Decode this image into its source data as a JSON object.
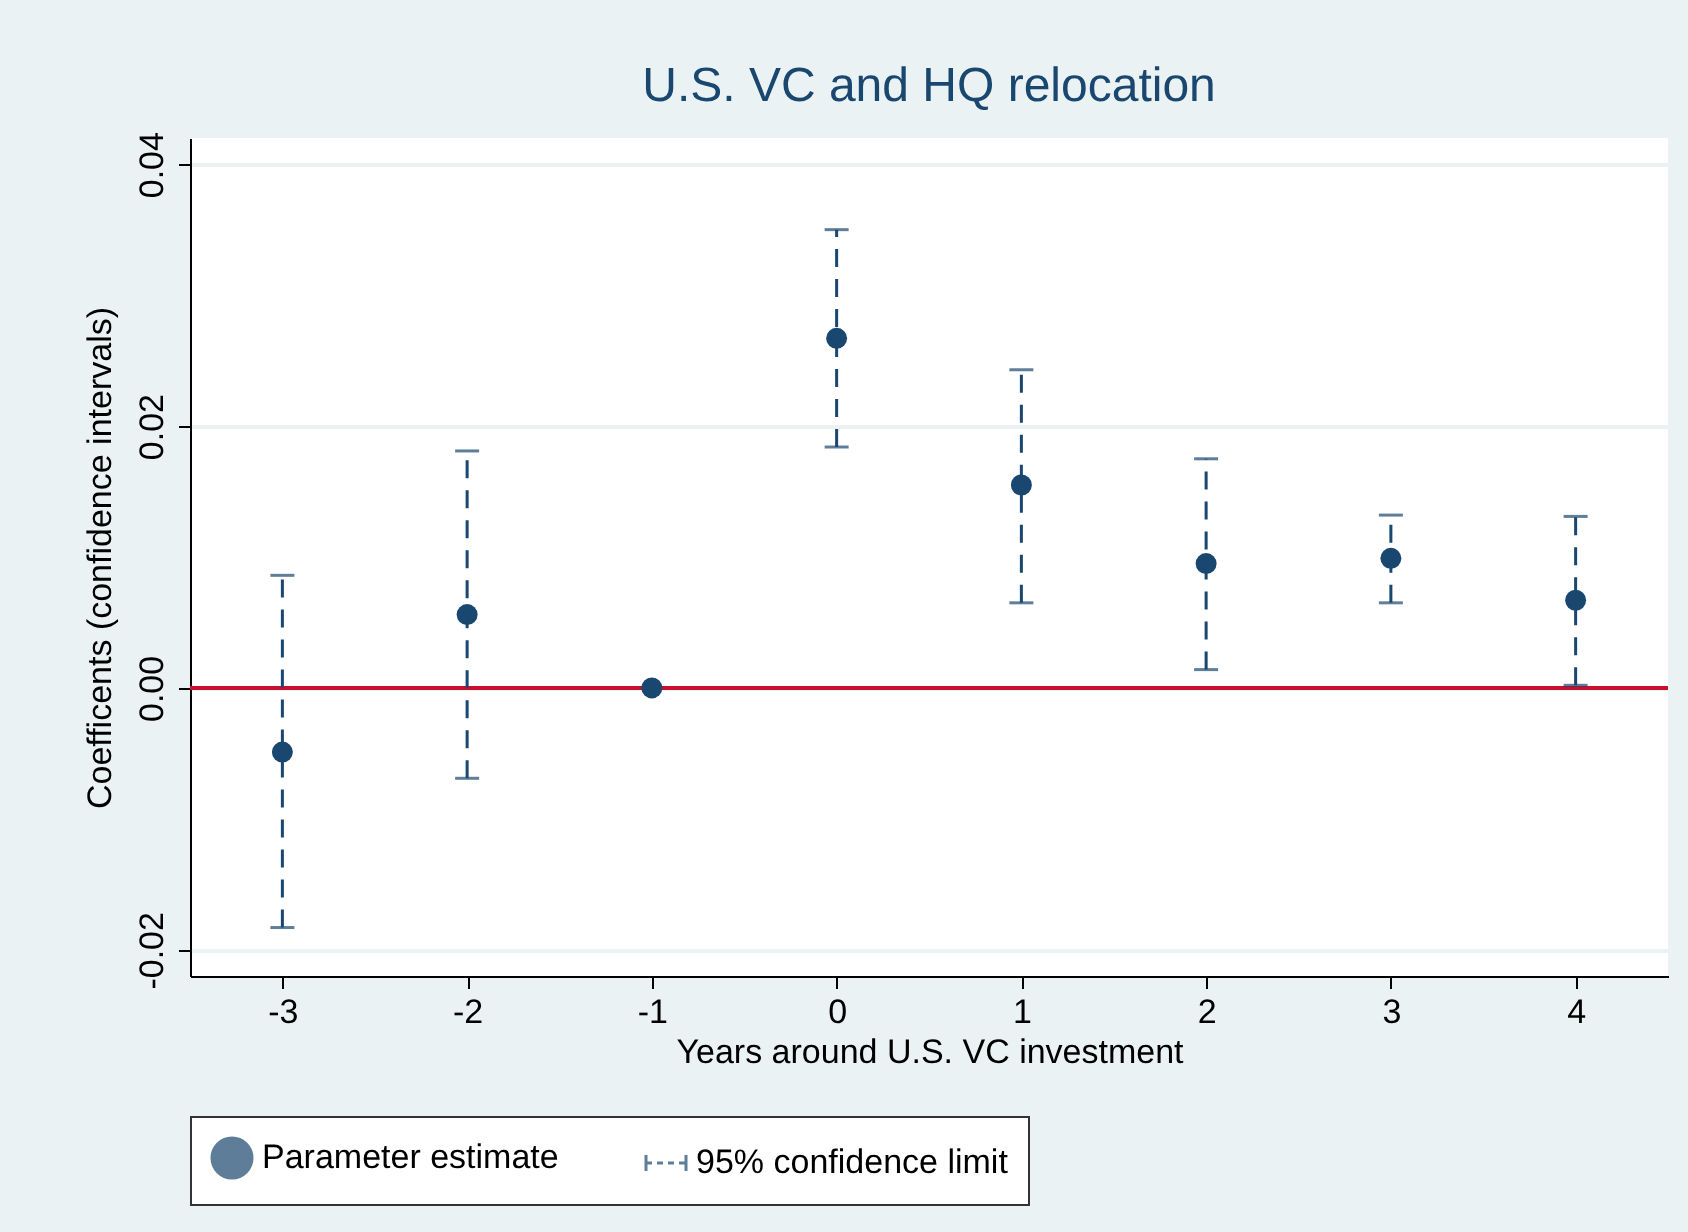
{
  "chart_data": {
    "type": "scatter",
    "title": "U.S. VC and HQ relocation",
    "xlabel": "Years around U.S. VC investment",
    "ylabel": "Coefficents (confidence intervals)",
    "x": [
      -3,
      -2,
      -1,
      0,
      1,
      2,
      3,
      4
    ],
    "series": [
      {
        "name": "Parameter estimate",
        "color": "#1a476f",
        "values": [
          -0.0049,
          0.0056,
          0,
          0.0267,
          0.0155,
          0.0095,
          0.0099,
          0.0067
        ],
        "errors": [
          [
            -0.0183,
            0.0086
          ],
          [
            -0.0069,
            0.0181
          ],
          null,
          [
            0.0184,
            0.035
          ],
          [
            0.0065,
            0.0243
          ],
          [
            0.0014,
            0.0175
          ],
          [
            0.0065,
            0.0132
          ],
          [
            0.0002,
            0.0131
          ]
        ]
      }
    ],
    "annotations": [
      "95% confidence limit"
    ],
    "xlim": [
      -3.5,
      4.5
    ],
    "xticks": [
      -3,
      -2,
      -1,
      0,
      1,
      2,
      3,
      4
    ],
    "ylim": [
      -0.022,
      0.042
    ],
    "yticks": [
      {
        "value": -0.02,
        "label": "-0.02"
      },
      {
        "value": 0,
        "label": "0.00"
      },
      {
        "value": 0.02,
        "label": "0.02"
      },
      {
        "value": 0.04,
        "label": "0.04"
      }
    ],
    "ref_lines": [
      {
        "axis": "y",
        "value": 0,
        "color": "#c8102e"
      }
    ],
    "grid": "y",
    "legend": "bottom",
    "marker": "circle"
  }
}
